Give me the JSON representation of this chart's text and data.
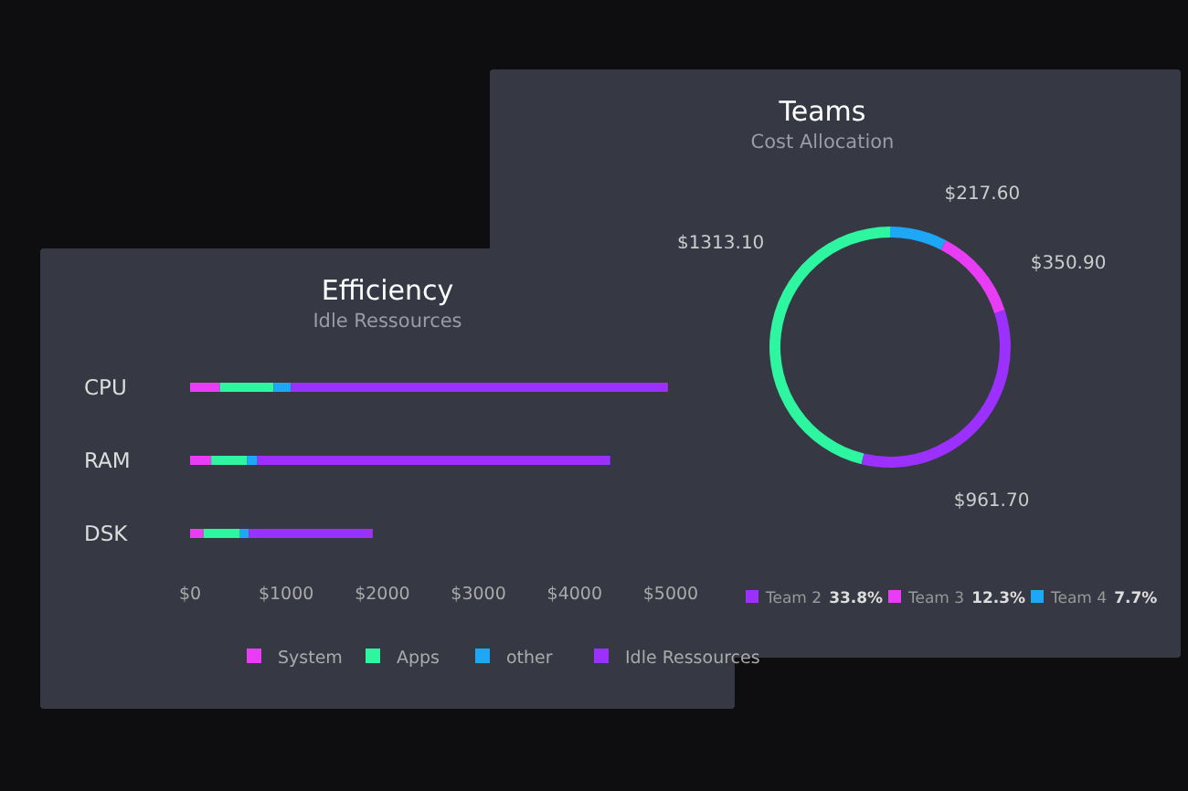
{
  "chart_data": [
    {
      "type": "bar",
      "orientation": "horizontal",
      "stacked": true,
      "title": "Efficiency",
      "subtitle": "Idle Ressources",
      "categories": [
        "CPU",
        "RAM",
        "DSK"
      ],
      "series": [
        {
          "name": "System",
          "color": "#e83cf5",
          "values": [
            310,
            220,
            140
          ]
        },
        {
          "name": "Apps",
          "color": "#2df5a0",
          "values": [
            560,
            370,
            380
          ]
        },
        {
          "name": "other",
          "color": "#1ea7f5",
          "values": [
            180,
            110,
            90
          ]
        },
        {
          "name": "Idle Ressources",
          "color": "#9b30ff",
          "values": [
            3920,
            3670,
            1290
          ]
        }
      ],
      "xlim": [
        0,
        5000
      ],
      "xticks": [
        {
          "value": 0,
          "label": "$0"
        },
        {
          "value": 1000,
          "label": "$1000"
        },
        {
          "value": 2000,
          "label": "$2000"
        },
        {
          "value": 3000,
          "label": "$3000"
        },
        {
          "value": 4000,
          "label": "$4000"
        },
        {
          "value": 5000,
          "label": "$5000"
        }
      ],
      "grid": false,
      "legend": "bottom"
    },
    {
      "type": "donut",
      "title": "Teams",
      "subtitle": "Cost Allocation",
      "categories": [
        null,
        "Team 2",
        "Team 3",
        "Team 4"
      ],
      "values": [
        1313.1,
        961.7,
        350.9,
        217.6
      ],
      "colors": [
        "#2df5a0",
        "#9b30ff",
        "#e83cf5",
        "#1ea7f5"
      ],
      "value_labels": [
        "$1313.10",
        "$961.70",
        "$350.90",
        "$217.60"
      ],
      "annotations": [
        "33.8%",
        "12.3%",
        "7.7%"
      ],
      "legend": "bottom"
    }
  ]
}
